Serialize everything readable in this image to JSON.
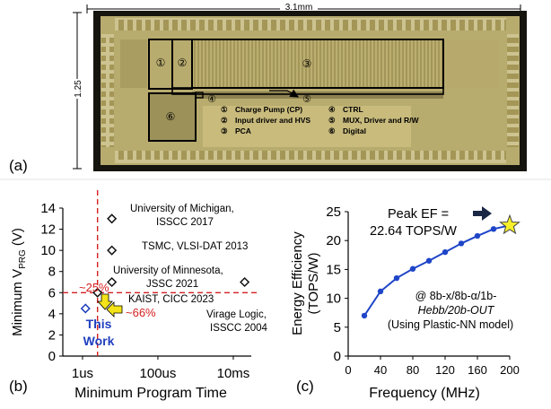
{
  "panel_a": {
    "label": "(a)",
    "width_dim": "3.1mm",
    "height_dim": "1.25",
    "block_numbers": [
      "①",
      "②",
      "③",
      "④",
      "⑤",
      "⑥"
    ],
    "legend": [
      {
        "num": "①",
        "text": "Charge Pump (CP)"
      },
      {
        "num": "②",
        "text": "Input driver and HVS"
      },
      {
        "num": "③",
        "text": "PCA"
      },
      {
        "num": "④",
        "text": "CTRL"
      },
      {
        "num": "⑤",
        "text": "MUX, Driver and R/W"
      },
      {
        "num": "⑥",
        "text": "Digital"
      }
    ],
    "colors": {
      "die": "#b8ab6e",
      "frame": "#15140f",
      "block_border": "#000000"
    }
  },
  "chart_data": [
    {
      "type": "scatter",
      "panel_label": "(b)",
      "xlabel": "Minimum Program Time",
      "ylabel": "Minimum V",
      "ylabel_sub": "PRG",
      "ylabel_unit": " (V)",
      "x_scale": "log",
      "xlim_seconds": [
        3e-07,
        0.03
      ],
      "x_ticks": [
        {
          "label": "1us",
          "value": 1e-06
        },
        {
          "label": "100us",
          "value": 0.0001
        },
        {
          "label": "10ms",
          "value": 0.01
        }
      ],
      "ylim": [
        0,
        14
      ],
      "y_ticks": [
        0,
        2,
        4,
        6,
        8,
        10,
        12,
        14
      ],
      "points": [
        {
          "name": "University of Michigan, ISSCC 2017",
          "line1": "University of Michigan,",
          "line2": "ISSCC 2017",
          "x": 6e-06,
          "y": 13
        },
        {
          "name": "TSMC, VLSI-DAT 2013",
          "line1": "TSMC, VLSI-DAT 2013",
          "line2": "",
          "x": 6e-06,
          "y": 10
        },
        {
          "name": "University of Minnesota, JSSC 2021",
          "line1": "University of Minnesota,",
          "line2": "JSSC 2021",
          "x": 6e-06,
          "y": 7
        },
        {
          "name": "KAIST, CICC 2023",
          "line1": "KAIST, CICC 2023",
          "line2": "",
          "x": 2.5e-06,
          "y": 6
        },
        {
          "name": "Virage Logic, ISSCC 2004",
          "line1": "Virage Logic,",
          "line2": "ISSCC 2004",
          "x": 0.02,
          "y": 7
        },
        {
          "name": "This Work",
          "line1": "This",
          "line2": "Work",
          "x": 1.2e-06,
          "y": 4.5
        }
      ],
      "reference_lines": {
        "x": 2.5e-06,
        "y": 6
      },
      "annotations": {
        "pct_y": "~25%",
        "pct_x": "~66%"
      },
      "colors": {
        "reference": "#d42020",
        "this_work": "#1f3fbf",
        "arrow": "#f3e318",
        "marker": "#111111"
      }
    },
    {
      "type": "line",
      "panel_label": "(c)",
      "xlabel": "Frequency (MHz)",
      "ylabel_line1": "Energy Efficiency",
      "ylabel_line2": "(TOPS/W)",
      "xlim": [
        0,
        200
      ],
      "ylim": [
        0,
        25
      ],
      "x_ticks": [
        0,
        40,
        80,
        120,
        160,
        200
      ],
      "y_ticks": [
        0,
        5,
        10,
        15,
        20,
        25
      ],
      "series": [
        {
          "name": "EF",
          "x": [
            20,
            40,
            60,
            80,
            100,
            120,
            140,
            160,
            180,
            200
          ],
          "y": [
            7.0,
            11.2,
            13.5,
            15.1,
            16.5,
            18.0,
            19.5,
            20.8,
            22.0,
            22.64
          ]
        }
      ],
      "peak_label_1": "Peak EF =",
      "peak_label_2": "22.64 TOPS/W",
      "note_1": "@ 8b-x/8b-α/1b-",
      "note_2": "Hebb/20b-OUT",
      "note_3": "(Using Plastic-NN model)",
      "colors": {
        "line": "#1f45c8",
        "star": "#f6ef2a",
        "arrow": "#1a2744"
      }
    }
  ]
}
